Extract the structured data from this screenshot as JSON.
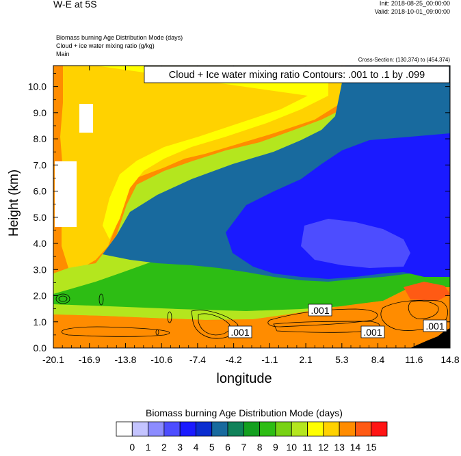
{
  "header": {
    "title": "W-E at 5S",
    "init": "Init: 2018-08-25_00:00:00",
    "valid": "Valid: 2018-10-01_09:00:00",
    "fields": [
      "Biomass burning Age Distribution Mode   (days)",
      "Cloud + ice water mixing ratio   (g/kg)",
      "Main"
    ],
    "cross_section": "Cross-Section: (130,374) to (454,374)"
  },
  "chart_data": {
    "type": "heatmap",
    "title": "W-E at 5S",
    "xlabel": "longitude",
    "ylabel": "Height (km)",
    "x_ticks": [
      "-20.1",
      "-16.9",
      "-13.8",
      "-10.6",
      "-7.4",
      "-4.2",
      "-1.1",
      "2.1",
      "5.3",
      "8.4",
      "11.6",
      "14.8"
    ],
    "y_ticks": [
      "0.0",
      "1.0",
      "2.0",
      "3.0",
      "4.0",
      "5.0",
      "6.0",
      "7.0",
      "8.0",
      "9.0",
      "10.0"
    ],
    "xlim": [
      -20.1,
      14.8
    ],
    "ylim": [
      0.0,
      10.8
    ],
    "contour_box": "Cloud + Ice water mixing ratio Contours: .001 to .1 by .099",
    "contour_labels": [
      ".001",
      ".001",
      ".001",
      ".001"
    ],
    "colorbar": {
      "title": "Biomass burning Age Distribution Mode  (days)",
      "levels": [
        "0",
        "1",
        "2",
        "3",
        "4",
        "5",
        "6",
        "7",
        "8",
        "9",
        "10",
        "11",
        "12",
        "13",
        "14",
        "15"
      ],
      "colors": [
        "#ffffff",
        "#c4c4ff",
        "#8c8cff",
        "#4d4dff",
        "#1a1aff",
        "#0a2dd0",
        "#186a9e",
        "#10825a",
        "#14a020",
        "#2dbd14",
        "#78d214",
        "#b4e61e",
        "#ffff00",
        "#ffd200",
        "#ff8c00",
        "#ff5a14",
        "#ff1414"
      ]
    }
  }
}
